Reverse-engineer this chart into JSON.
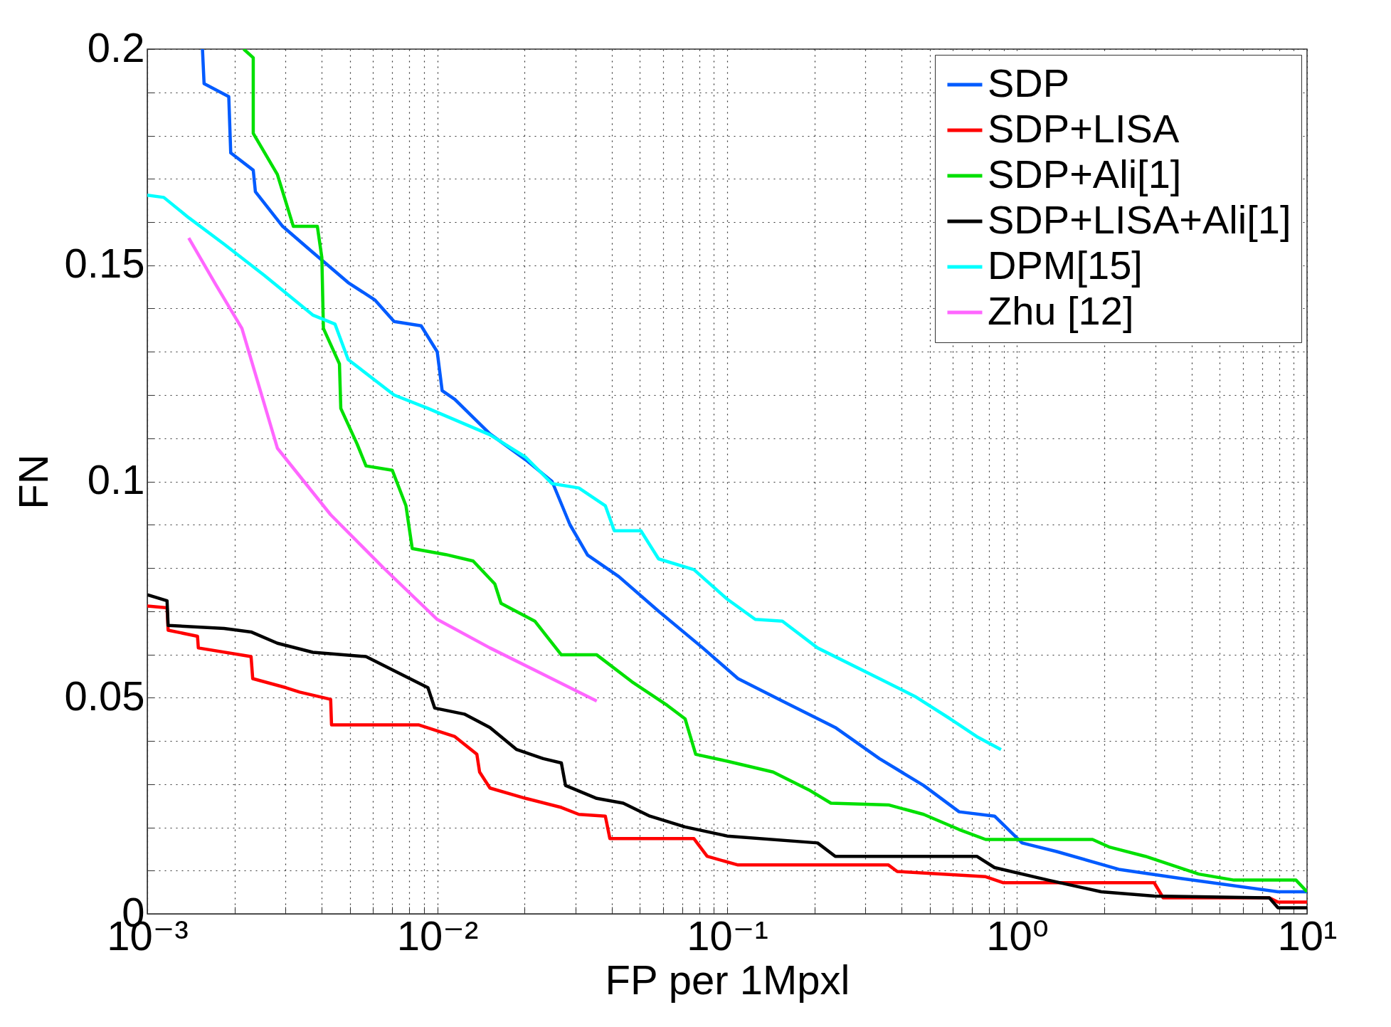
{
  "chart_data": {
    "type": "line",
    "xlabel": "FP per 1Mpxl",
    "ylabel": "FN",
    "log": "x",
    "grid": true,
    "legend": "top right",
    "line_style": "solid",
    "marker": "none",
    "xlim": [
      0.001,
      10
    ],
    "ylim": [
      0,
      0.2
    ],
    "xticks": [
      {
        "value": 0.001,
        "label": "10⁻³"
      },
      {
        "value": 0.002,
        "label": null
      },
      {
        "value": 0.003,
        "label": null
      },
      {
        "value": 0.004,
        "label": null
      },
      {
        "value": 0.005,
        "label": null
      },
      {
        "value": 0.006,
        "label": null
      },
      {
        "value": 0.007,
        "label": null
      },
      {
        "value": 0.008,
        "label": null
      },
      {
        "value": 0.009,
        "label": null
      },
      {
        "value": 0.01,
        "label": "10⁻²"
      },
      {
        "value": 0.02,
        "label": null
      },
      {
        "value": 0.03,
        "label": null
      },
      {
        "value": 0.04,
        "label": null
      },
      {
        "value": 0.05,
        "label": null
      },
      {
        "value": 0.06,
        "label": null
      },
      {
        "value": 0.07,
        "label": null
      },
      {
        "value": 0.08,
        "label": null
      },
      {
        "value": 0.09,
        "label": null
      },
      {
        "value": 0.1,
        "label": "10⁻¹"
      },
      {
        "value": 0.2,
        "label": null
      },
      {
        "value": 0.3,
        "label": null
      },
      {
        "value": 0.4,
        "label": null
      },
      {
        "value": 0.5,
        "label": null
      },
      {
        "value": 0.6,
        "label": null
      },
      {
        "value": 0.7,
        "label": null
      },
      {
        "value": 0.8,
        "label": null
      },
      {
        "value": 0.9,
        "label": null
      },
      {
        "value": 1,
        "label": "10⁰"
      },
      {
        "value": 2,
        "label": null
      },
      {
        "value": 3,
        "label": null
      },
      {
        "value": 4,
        "label": null
      },
      {
        "value": 5,
        "label": null
      },
      {
        "value": 6,
        "label": null
      },
      {
        "value": 7,
        "label": null
      },
      {
        "value": 8,
        "label": null
      },
      {
        "value": 9,
        "label": null
      },
      {
        "value": 10,
        "label": "10¹"
      }
    ],
    "yticks": [
      0,
      {
        "value": 0.01,
        "label": null
      },
      {
        "value": 0.02,
        "label": null
      },
      {
        "value": 0.03,
        "label": null
      },
      {
        "value": 0.04,
        "label": null
      },
      0.05,
      {
        "value": 0.06,
        "label": null
      },
      {
        "value": 0.07,
        "label": null
      },
      {
        "value": 0.08,
        "label": null
      },
      {
        "value": 0.09,
        "label": null
      },
      0.1,
      {
        "value": 0.11,
        "label": null
      },
      {
        "value": 0.12,
        "label": null
      },
      {
        "value": 0.13,
        "label": null
      },
      {
        "value": 0.14,
        "label": null
      },
      0.15,
      {
        "value": 0.16,
        "label": null
      },
      {
        "value": 0.17,
        "label": null
      },
      {
        "value": 0.18,
        "label": null
      },
      {
        "value": 0.19,
        "label": null
      },
      0.2
    ],
    "series": [
      {
        "name": "SDP",
        "color": "#005bff",
        "x": [
          0.00155,
          0.00157,
          0.00191,
          0.00194,
          0.00232,
          0.00236,
          0.00293,
          0.00372,
          0.00493,
          0.00609,
          0.0071,
          0.0088,
          0.01,
          0.0104,
          0.0115,
          0.0152,
          0.0202,
          0.0249,
          0.0287,
          0.033,
          0.0423,
          0.058,
          0.0824,
          0.109,
          0.155,
          0.236,
          0.335,
          0.476,
          0.631,
          0.836,
          1.04,
          1.37,
          2.24,
          3.67,
          7.94,
          10
        ],
        "values": [
          0.2,
          0.192,
          0.189,
          0.176,
          0.172,
          0.167,
          0.159,
          0.153,
          0.146,
          0.142,
          0.137,
          0.136,
          0.13,
          0.121,
          0.119,
          0.111,
          0.105,
          0.1,
          0.09,
          0.083,
          0.078,
          0.07,
          0.0615,
          0.0544,
          0.0492,
          0.0431,
          0.0359,
          0.0297,
          0.0236,
          0.0226,
          0.0164,
          0.0144,
          0.0103,
          0.0082,
          0.0051,
          0.0051
        ]
      },
      {
        "name": "SDP+LISA",
        "color": "#ff0000",
        "x": [
          0.001,
          0.00117,
          0.00118,
          0.00149,
          0.0015,
          0.00228,
          0.00231,
          0.00301,
          0.00335,
          0.00429,
          0.00432,
          0.00865,
          0.0115,
          0.0137,
          0.014,
          0.0152,
          0.0202,
          0.0268,
          0.0308,
          0.038,
          0.0394,
          0.0768,
          0.0853,
          0.109,
          0.36,
          0.386,
          0.779,
          0.897,
          2.97,
          3.19,
          7.41,
          7.94,
          10
        ],
        "values": [
          0.0712,
          0.0708,
          0.0656,
          0.0642,
          0.0615,
          0.0595,
          0.0544,
          0.0523,
          0.0513,
          0.0496,
          0.0437,
          0.0437,
          0.041,
          0.0369,
          0.0328,
          0.0291,
          0.0267,
          0.0246,
          0.023,
          0.0226,
          0.0174,
          0.0174,
          0.0133,
          0.0113,
          0.0113,
          0.0098,
          0.0086,
          0.0072,
          0.0072,
          0.0037,
          0.0037,
          0.0027,
          0.0027
        ]
      },
      {
        "name": "SDP+Ali[1]",
        "color": "#00e000",
        "x": [
          0.00215,
          0.00232,
          0.00232,
          0.00281,
          0.00319,
          0.00386,
          0.004,
          0.00405,
          0.0046,
          0.00465,
          0.00529,
          0.00568,
          0.007,
          0.0078,
          0.0082,
          0.0107,
          0.0133,
          0.0158,
          0.0166,
          0.0217,
          0.0268,
          0.0355,
          0.0469,
          0.0622,
          0.0716,
          0.0779,
          0.1,
          0.144,
          0.191,
          0.228,
          0.36,
          0.476,
          0.631,
          0.779,
          1.82,
          2.09,
          2.77,
          4.23,
          5.6,
          9.16,
          10
        ],
        "values": [
          0.2,
          0.198,
          0.1805,
          0.171,
          0.159,
          0.159,
          0.1518,
          0.1354,
          0.1272,
          0.1169,
          0.1087,
          0.1036,
          0.1026,
          0.0944,
          0.0845,
          0.0831,
          0.0816,
          0.0763,
          0.0718,
          0.0677,
          0.0599,
          0.0599,
          0.0537,
          0.0482,
          0.0451,
          0.0369,
          0.0353,
          0.0328,
          0.0287,
          0.0256,
          0.0252,
          0.023,
          0.0195,
          0.0172,
          0.0172,
          0.0154,
          0.0133,
          0.0092,
          0.0078,
          0.0078,
          0.0051
        ]
      },
      {
        "name": "SDP+LISA+Ali[1]",
        "color": "#000000",
        "x": [
          0.001,
          0.00117,
          0.00118,
          0.00184,
          0.00228,
          0.00281,
          0.00372,
          0.00568,
          0.00752,
          0.00929,
          0.0098,
          0.0124,
          0.0152,
          0.0188,
          0.0232,
          0.0268,
          0.0277,
          0.0355,
          0.0438,
          0.0541,
          0.0716,
          0.1,
          0.205,
          0.236,
          0.726,
          0.836,
          1.28,
          1.95,
          2.97,
          7.41,
          7.94,
          10
        ],
        "values": [
          0.0738,
          0.0724,
          0.0667,
          0.066,
          0.0652,
          0.0626,
          0.0605,
          0.0595,
          0.0554,
          0.0523,
          0.0476,
          0.0462,
          0.0431,
          0.038,
          0.0359,
          0.0349,
          0.0297,
          0.0267,
          0.0256,
          0.0226,
          0.0201,
          0.018,
          0.0164,
          0.0133,
          0.0133,
          0.0107,
          0.0078,
          0.0051,
          0.0041,
          0.0037,
          0.0014,
          0.0014
        ]
      },
      {
        "name": "DPM[15]",
        "color": "#00ffff",
        "x": [
          0.001,
          0.00114,
          0.00139,
          0.00184,
          0.00253,
          0.00372,
          0.00444,
          0.00493,
          0.0071,
          0.0093,
          0.0152,
          0.0202,
          0.0249,
          0.0308,
          0.038,
          0.0408,
          0.0504,
          0.058,
          0.0768,
          0.1,
          0.125,
          0.155,
          0.205,
          0.335,
          0.444,
          0.588,
          0.726,
          0.88
        ],
        "values": [
          0.1662,
          0.1657,
          0.161,
          0.1549,
          0.1477,
          0.1385,
          0.1364,
          0.1282,
          0.12,
          0.1169,
          0.1108,
          0.1056,
          0.0995,
          0.0985,
          0.0944,
          0.0886,
          0.0886,
          0.0821,
          0.0796,
          0.0728,
          0.0681,
          0.0677,
          0.0615,
          0.0544,
          0.0503,
          0.0451,
          0.041,
          0.038
        ]
      },
      {
        "name": "Zhu [12]",
        "color": "#ff66ff",
        "x": [
          0.00139,
          0.00172,
          0.00212,
          0.00281,
          0.00429,
          0.00653,
          0.01,
          0.0152,
          0.0232,
          0.0355
        ],
        "values": [
          0.1563,
          0.1456,
          0.1354,
          0.1077,
          0.0923,
          0.08,
          0.0681,
          0.0615,
          0.0554,
          0.0492
        ]
      }
    ]
  }
}
